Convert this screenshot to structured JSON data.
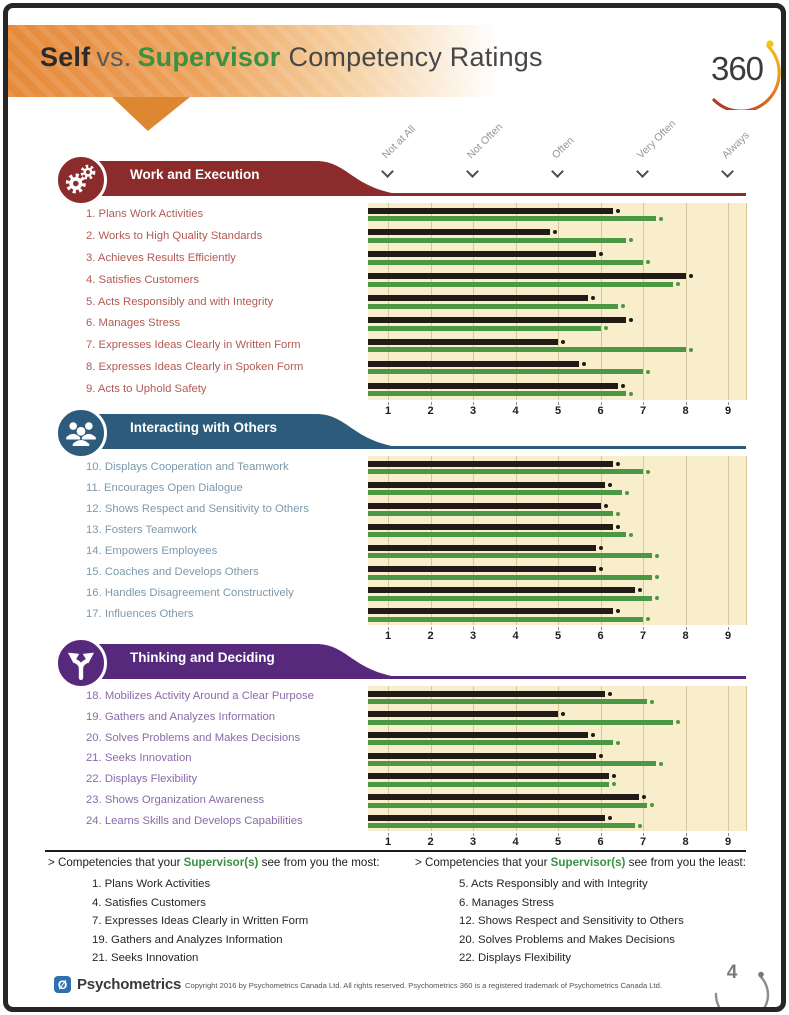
{
  "header": {
    "title_parts": {
      "self": "Self",
      "vs": "vs.",
      "supervisor": "Supervisor",
      "rest": "Competency Ratings"
    },
    "logo_text": "360"
  },
  "scale": {
    "labels": [
      "Not at All",
      "Not Often",
      "Often",
      "Very Often",
      "Always"
    ],
    "label_positions": [
      1,
      3,
      5,
      7,
      9
    ],
    "ticks": [
      1,
      2,
      3,
      4,
      5,
      6,
      7,
      8,
      9
    ],
    "min": 1,
    "max": 9
  },
  "series_colors": {
    "self": "#201b16",
    "supervisor": "#4b9743"
  },
  "sections": [
    {
      "title": "Work and Execution",
      "icon": "gears-icon",
      "color": "#8b2b2b",
      "item_color": "#b25a52"
    },
    {
      "title": "Interacting with Others",
      "icon": "people-group-icon",
      "color": "#2d5b7b",
      "item_color": "#7d99ac"
    },
    {
      "title": "Thinking and Deciding",
      "icon": "branch-arrows-icon",
      "color": "#56297d",
      "item_color": "#8a6aa8"
    }
  ],
  "chart_data": [
    {
      "type": "bar",
      "orientation": "horizontal",
      "title": "Work and Execution",
      "categories": [
        "1. Plans Work Activities",
        "2. Works to High Quality Standards",
        "3. Achieves Results Efficiently",
        "4. Satisfies Customers",
        "5. Acts Responsibly and with Integrity",
        "6. Manages Stress",
        "7. Expresses Ideas Clearly in Written Form",
        "8. Expresses Ideas Clearly in Spoken Form",
        "9. Acts to Uphold Safety"
      ],
      "series": [
        {
          "name": "Self",
          "color": "#201b16",
          "values": [
            6.3,
            4.8,
            5.9,
            8.0,
            5.7,
            6.6,
            5.0,
            5.5,
            6.4
          ]
        },
        {
          "name": "Supervisor",
          "color": "#4b9743",
          "values": [
            7.3,
            6.6,
            7.0,
            7.7,
            6.4,
            6.0,
            8.0,
            7.0,
            6.6
          ]
        }
      ],
      "xlim": [
        1,
        9
      ],
      "xticks": [
        1,
        2,
        3,
        4,
        5,
        6,
        7,
        8,
        9
      ],
      "grid": true
    },
    {
      "type": "bar",
      "orientation": "horizontal",
      "title": "Interacting with Others",
      "categories": [
        "10. Displays Cooperation and Teamwork",
        "11. Encourages Open Dialogue",
        "12. Shows Respect and Sensitivity to Others",
        "13. Fosters Teamwork",
        "14. Empowers Employees",
        "15. Coaches and Develops Others",
        "16. Handles Disagreement Constructively",
        "17. Influences Others"
      ],
      "series": [
        {
          "name": "Self",
          "color": "#201b16",
          "values": [
            6.3,
            6.1,
            6.0,
            6.3,
            5.9,
            5.9,
            6.8,
            6.3
          ]
        },
        {
          "name": "Supervisor",
          "color": "#4b9743",
          "values": [
            7.0,
            6.5,
            6.3,
            6.6,
            7.2,
            7.2,
            7.2,
            7.0
          ]
        }
      ],
      "xlim": [
        1,
        9
      ],
      "xticks": [
        1,
        2,
        3,
        4,
        5,
        6,
        7,
        8,
        9
      ],
      "grid": true
    },
    {
      "type": "bar",
      "orientation": "horizontal",
      "title": "Thinking and Deciding",
      "categories": [
        "18. Mobilizes Activity Around a Clear Purpose",
        "19. Gathers and Analyzes Information",
        "20. Solves Problems and Makes Decisions",
        "21. Seeks Innovation",
        "22. Displays Flexibility",
        "23. Shows Organization Awareness",
        "24. Learns Skills and Develops Capabilities"
      ],
      "series": [
        {
          "name": "Self",
          "color": "#201b16",
          "values": [
            6.1,
            5.0,
            5.7,
            5.9,
            6.2,
            6.9,
            6.1
          ]
        },
        {
          "name": "Supervisor",
          "color": "#4b9743",
          "values": [
            7.1,
            7.7,
            6.3,
            7.3,
            6.2,
            7.1,
            6.8
          ]
        }
      ],
      "xlim": [
        1,
        9
      ],
      "xticks": [
        1,
        2,
        3,
        4,
        5,
        6,
        7,
        8,
        9
      ],
      "grid": true
    }
  ],
  "insights": {
    "most": {
      "prefix": "> Competencies that your",
      "highlight": "Supervisor(s)",
      "suffix": "see from you the most:",
      "items": [
        "1. Plans Work Activities",
        "4. Satisfies Customers",
        "7. Expresses Ideas Clearly in Written Form",
        "19. Gathers and Analyzes Information",
        "21. Seeks Innovation"
      ]
    },
    "least": {
      "prefix": "> Competencies that your",
      "highlight": "Supervisor(s)",
      "suffix": "see from you the least:",
      "items": [
        "5. Acts Responsibly and with Integrity",
        "6. Manages Stress",
        "12. Shows Respect and Sensitivity to Others",
        "20. Solves Problems and Makes Decisions",
        "22. Displays Flexibility"
      ]
    }
  },
  "footer": {
    "brand": "Psychometrics",
    "copyright": "Copyright 2016 by Psychometrics Canada Ltd. All rights reserved. Psychometrics 360 is a registered trademark of Psychometrics Canada Ltd.",
    "page_number": "4"
  }
}
